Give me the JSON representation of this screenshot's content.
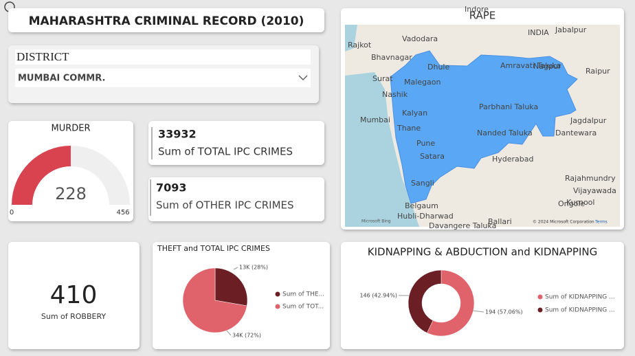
{
  "header": {
    "title": "MAHARASHTRA CRIMINAL RECORD (2010)"
  },
  "slicer": {
    "label": "DISTRICT",
    "value": "MUMBAI COMMR."
  },
  "cards": [
    {
      "value": 33932,
      "label": "Sum of TOTAL IPC CRIMES"
    },
    {
      "value": 7093,
      "label": "Sum of OTHER IPC CRIMES"
    },
    {
      "value": 410,
      "label": "Sum of ROBBERY"
    }
  ],
  "map": {
    "title": "RAPE",
    "places": [
      "Indore",
      "INDIA",
      "Jabalpur",
      "Vadodara",
      "Rajkot",
      "Bhavnagar",
      "Surat",
      "Dhule",
      "Amravati Taluka",
      "Nagpur",
      "Raipur",
      "Nashik",
      "Malegaon",
      "Parbhani Taluka",
      "Mumbai",
      "Kalyan",
      "Thane",
      "Pune",
      "Nanded Taluka",
      "Hyderabad",
      "Satara",
      "Sangli",
      "Belgaum",
      "Rajahmundry",
      "Vijayawada",
      "Dantewara",
      "Jagdalpur",
      "Kurnool",
      "Ongole",
      "Hubli-Dharwad",
      "Davangere Taluka",
      "Ballari"
    ],
    "attribution": "© 2024 Microsoft Corporation",
    "terms": "Terms",
    "brand": "Microsoft Bing"
  },
  "chart_data": [
    {
      "type": "gauge",
      "title": "MURDER",
      "value": 228,
      "ylim": [
        0,
        456
      ],
      "color": "#d9434f",
      "track_color": "#efefef"
    },
    {
      "type": "pie",
      "title": "THEFT and TOTAL IPC CRIMES",
      "categories": [
        "Sum of THE...",
        "Sum of TOT..."
      ],
      "values": [
        13000,
        33932
      ],
      "value_labels": [
        "13K (28%)",
        "34K (72%)"
      ],
      "colors": [
        "#6b1f24",
        "#e0626b"
      ]
    },
    {
      "type": "donut",
      "title": "KIDNAPPING & ABDUCTION and KIDNAPPING",
      "categories": [
        "Sum of KIDNAPPING ...",
        "Sum of KIDNAPPING ..."
      ],
      "values": [
        194,
        146
      ],
      "value_labels": [
        "194 (57.06%)",
        "146 (42.94%)"
      ],
      "colors": [
        "#e0626b",
        "#6b1f24"
      ]
    }
  ]
}
